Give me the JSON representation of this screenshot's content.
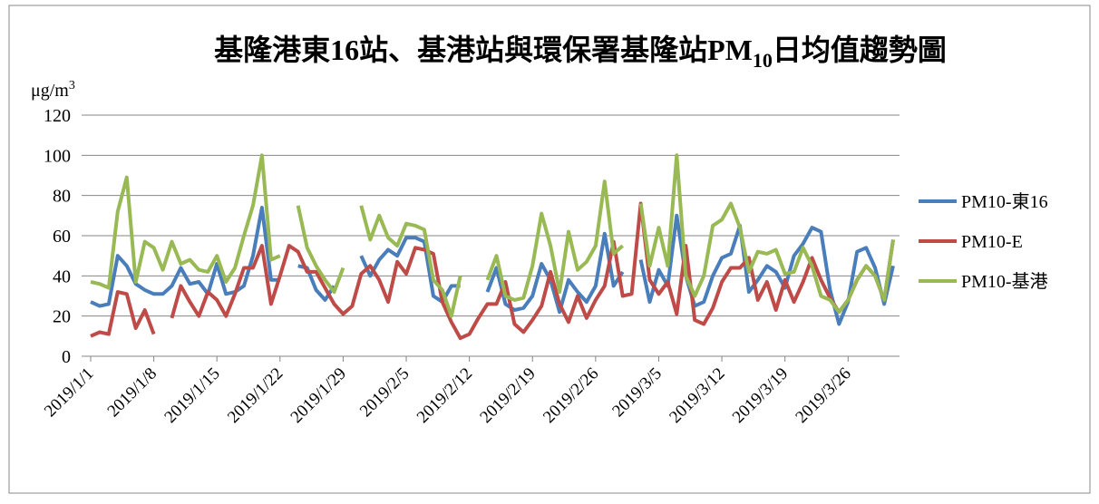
{
  "chart_data": {
    "type": "line",
    "title": "基隆港東16站、基港站與環保署基隆站PM",
    "title_subscript": "10",
    "title_end": "日均值趨勢圖",
    "y_unit": "μg/m",
    "y_unit_superscript": "3",
    "categories": [
      "2019/1/1",
      null,
      null,
      null,
      null,
      null,
      null,
      "2019/1/8",
      null,
      null,
      null,
      null,
      null,
      null,
      "2019/1/15",
      null,
      null,
      null,
      null,
      null,
      null,
      "2019/1/22",
      null,
      null,
      null,
      null,
      null,
      null,
      "2019/1/29",
      null,
      null,
      null,
      null,
      null,
      null,
      "2019/2/5",
      null,
      null,
      null,
      null,
      null,
      null,
      "2019/2/12",
      null,
      null,
      null,
      null,
      null,
      null,
      "2019/2/19",
      null,
      null,
      null,
      null,
      null,
      null,
      "2019/2/26",
      null,
      null,
      null,
      null,
      null,
      null,
      "2019/3/5",
      null,
      null,
      null,
      null,
      null,
      null,
      "2019/3/12",
      null,
      null,
      null,
      null,
      null,
      null,
      "2019/3/19",
      null,
      null,
      null,
      null,
      null,
      null,
      "2019/3/26",
      null,
      null,
      null,
      null,
      null
    ],
    "series": [
      {
        "name": "PM10-東16",
        "color": "#4a7ebb",
        "values": [
          27,
          25,
          26,
          50,
          45,
          36,
          33,
          31,
          31,
          35,
          44,
          36,
          37,
          31,
          46,
          31,
          32,
          35,
          50,
          74,
          38,
          38,
          null,
          45,
          44,
          33,
          28,
          35,
          null,
          null,
          50,
          40,
          48,
          53,
          50,
          59,
          59,
          57,
          30,
          27,
          35,
          35,
          null,
          null,
          32,
          44,
          26,
          23,
          24,
          30,
          46,
          38,
          22,
          38,
          32,
          27,
          35,
          61,
          35,
          42,
          null,
          48,
          27,
          43,
          35,
          70,
          40,
          25,
          27,
          40,
          49,
          51,
          65,
          32,
          38,
          45,
          42,
          34,
          50,
          56,
          64,
          62,
          33,
          16,
          27,
          52,
          54,
          44,
          26,
          45
        ]
      },
      {
        "name": "PM10-E",
        "color": "#be4b48",
        "values": [
          10,
          12,
          11,
          32,
          31,
          14,
          23,
          11,
          null,
          19,
          35,
          27,
          20,
          32,
          28,
          20,
          31,
          44,
          44,
          55,
          26,
          40,
          55,
          52,
          42,
          42,
          34,
          26,
          21,
          25,
          41,
          45,
          38,
          27,
          47,
          41,
          54,
          53,
          51,
          27,
          17,
          9,
          11,
          19,
          26,
          26,
          37,
          16,
          12,
          18,
          25,
          42,
          26,
          17,
          30,
          19,
          28,
          35,
          57,
          30,
          31,
          76,
          38,
          31,
          37,
          21,
          55,
          18,
          16,
          24,
          37,
          44,
          44,
          49,
          28,
          37,
          23,
          38,
          27,
          37,
          49,
          38,
          29,
          22,
          28,
          38,
          45,
          40,
          28,
          58
        ]
      },
      {
        "name": "PM10-基港",
        "color": "#98b954",
        "values": [
          37,
          36,
          34,
          72,
          89,
          37,
          57,
          54,
          43,
          57,
          46,
          48,
          43,
          42,
          50,
          37,
          44,
          60,
          75,
          100,
          48,
          50,
          null,
          75,
          54,
          45,
          38,
          32,
          44,
          null,
          75,
          58,
          70,
          59,
          55,
          66,
          65,
          63,
          38,
          33,
          20,
          40,
          null,
          null,
          38,
          50,
          30,
          28,
          29,
          45,
          71,
          55,
          32,
          62,
          43,
          47,
          55,
          87,
          51,
          55,
          null,
          76,
          45,
          64,
          45,
          100,
          40,
          30,
          40,
          65,
          68,
          76,
          64,
          42,
          52,
          51,
          53,
          41,
          42,
          54,
          45,
          30,
          28,
          22,
          28,
          38,
          45,
          40,
          28,
          58
        ]
      }
    ],
    "ylim": [
      0,
      120
    ],
    "yticks": [
      0,
      20,
      40,
      60,
      80,
      100,
      120
    ],
    "grid": true,
    "legend": "right"
  }
}
